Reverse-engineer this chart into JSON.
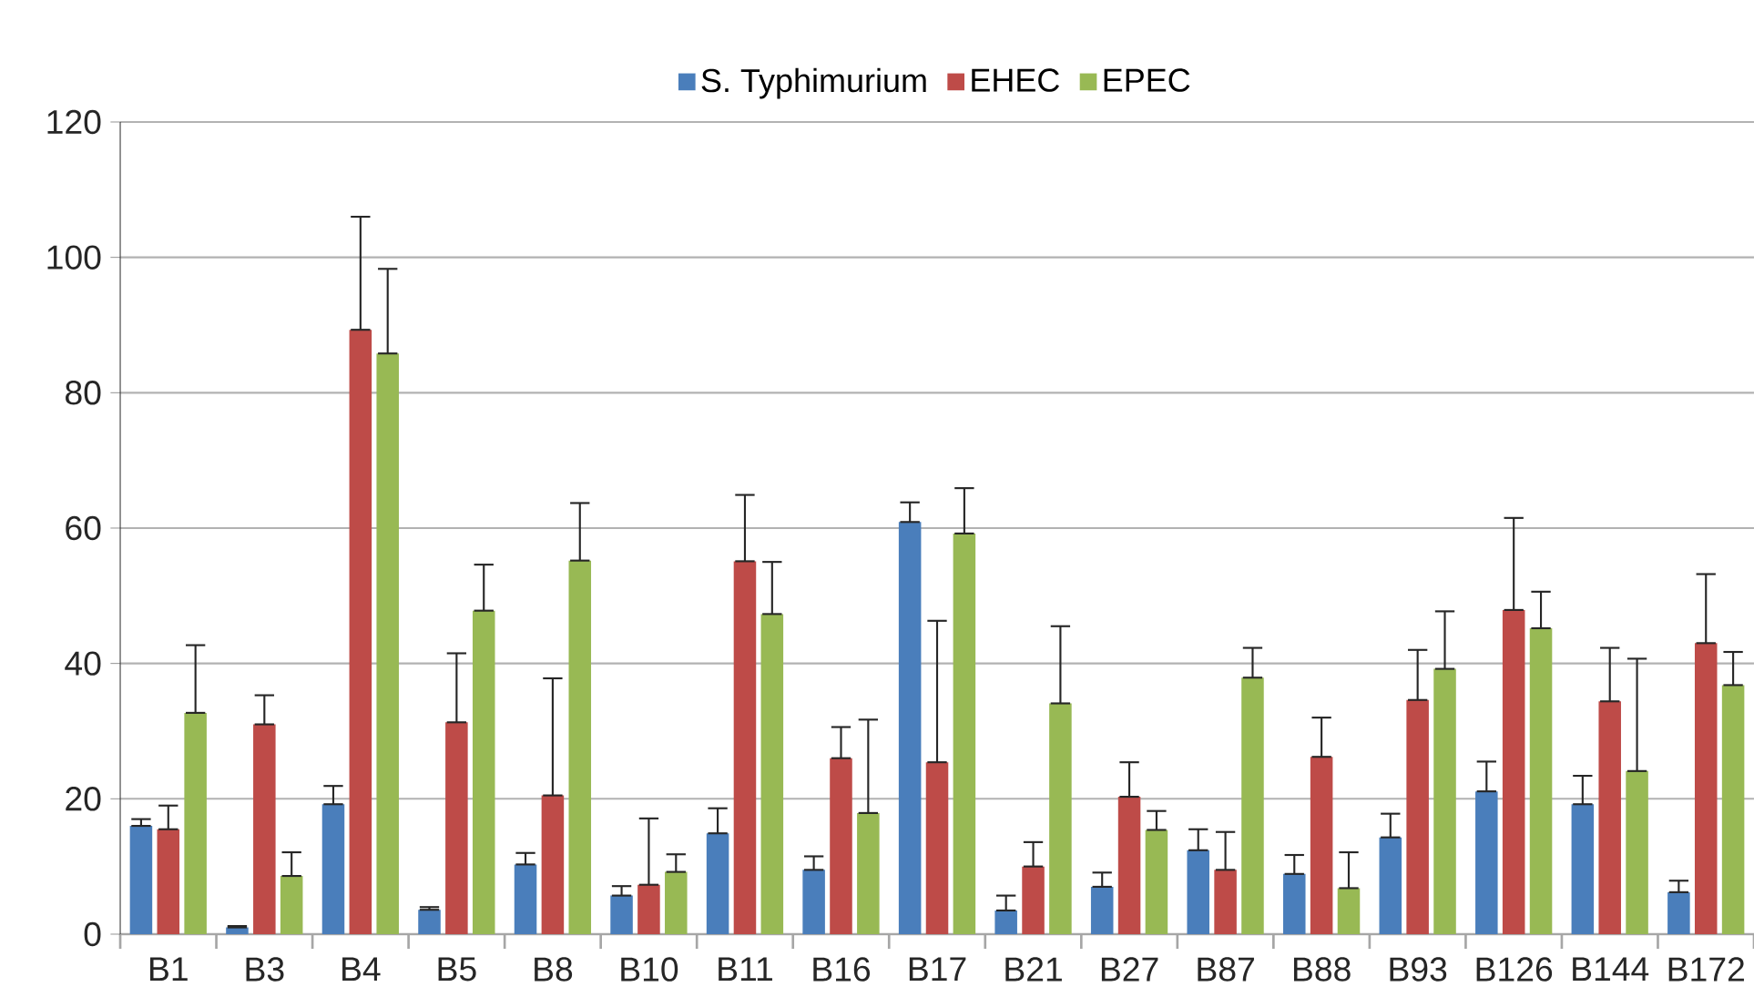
{
  "chart_data": {
    "type": "bar",
    "categories": [
      "B1",
      "B3",
      "B4",
      "B5",
      "B8",
      "B10",
      "B11",
      "B16",
      "B17",
      "B21",
      "B27",
      "B87",
      "B88",
      "B93",
      "B126",
      "B144",
      "B172"
    ],
    "series": [
      {
        "name": "S. Typhimurium",
        "color": "#4a7ebb",
        "values": [
          16,
          1,
          19.2,
          3.6,
          10.3,
          5.7,
          14.9,
          9.5,
          60.9,
          3.5,
          7.0,
          12.4,
          8.9,
          14.3,
          21.1,
          19.2,
          6.2
        ],
        "errors": [
          [
            16,
            17
          ],
          [
            1,
            1.2
          ],
          [
            19.2,
            21.9
          ],
          [
            3.6,
            4
          ],
          [
            10.3,
            12
          ],
          [
            5.7,
            7.1
          ],
          [
            14.9,
            18.6
          ],
          [
            9.5,
            11.5
          ],
          [
            60.9,
            63.8
          ],
          [
            3.5,
            5.7
          ],
          [
            7.0,
            9.1
          ],
          [
            12.4,
            15.5
          ],
          [
            8.9,
            11.7
          ],
          [
            14.3,
            17.8
          ],
          [
            21.1,
            25.5
          ],
          [
            19.2,
            23.4
          ],
          [
            6.2,
            7.9
          ]
        ]
      },
      {
        "name": "EHEC",
        "color": "#be4b48",
        "values": [
          15.5,
          31,
          89.3,
          31.3,
          20.5,
          7.3,
          55.1,
          26.0,
          25.4,
          10.0,
          20.3,
          9.5,
          26.2,
          34.6,
          47.9,
          34.4,
          43.0
        ],
        "errors": [
          [
            15.5,
            19
          ],
          [
            31,
            35.3
          ],
          [
            89.3,
            106
          ],
          [
            31.3,
            41.5
          ],
          [
            20.5,
            37.8
          ],
          [
            7.3,
            17.1
          ],
          [
            55.1,
            64.9
          ],
          [
            26.0,
            30.6
          ],
          [
            25.4,
            46.3
          ],
          [
            10.0,
            13.6
          ],
          [
            20.3,
            25.4
          ],
          [
            9.5,
            15.1
          ],
          [
            26.2,
            32.0
          ],
          [
            34.6,
            42.0
          ],
          [
            47.9,
            61.5
          ],
          [
            34.4,
            42.3
          ],
          [
            43.0,
            53.2
          ]
        ]
      },
      {
        "name": "EPEC",
        "color": "#98b954",
        "values": [
          32.7,
          8.6,
          85.8,
          47.8,
          55.2,
          9.2,
          47.3,
          17.9,
          59.2,
          34.1,
          15.4,
          37.9,
          6.8,
          39.2,
          45.2,
          24.1,
          36.8
        ],
        "errors": [
          [
            32.7,
            42.7
          ],
          [
            8.6,
            12.1
          ],
          [
            85.8,
            98.3
          ],
          [
            47.8,
            54.6
          ],
          [
            55.2,
            63.7
          ],
          [
            9.2,
            11.8
          ],
          [
            47.3,
            55.0
          ],
          [
            17.9,
            31.7
          ],
          [
            59.2,
            65.9
          ],
          [
            34.1,
            45.5
          ],
          [
            15.4,
            18.2
          ],
          [
            37.9,
            42.3
          ],
          [
            6.8,
            12.1
          ],
          [
            39.2,
            47.7
          ],
          [
            45.2,
            50.6
          ],
          [
            24.1,
            40.7
          ],
          [
            36.8,
            41.7
          ]
        ]
      }
    ],
    "ylim": [
      0,
      120
    ],
    "yticks": [
      0,
      20,
      40,
      60,
      80,
      100,
      120
    ],
    "grid": "y",
    "legend": "top"
  }
}
